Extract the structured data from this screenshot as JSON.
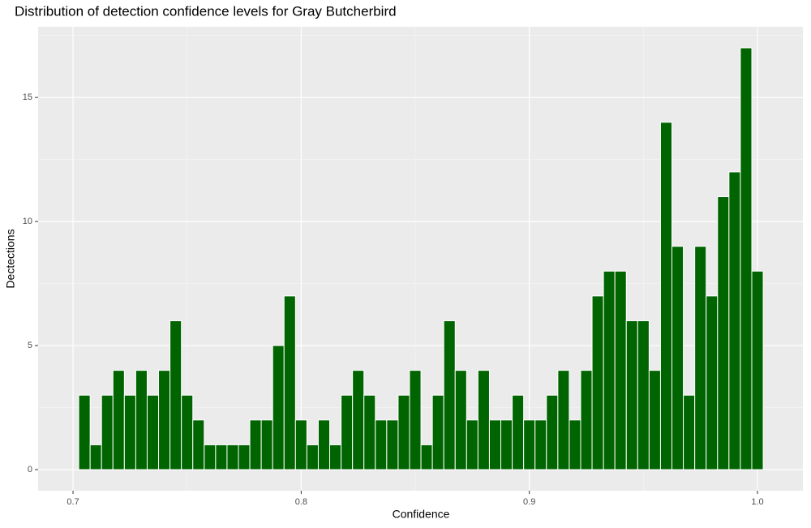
{
  "chart_data": {
    "type": "histogram",
    "title": "Distribution of detection confidence levels for Gray Butcherbird",
    "x_label": "Confidence",
    "y_label": "Dectections",
    "bins": [
      0.7025,
      0.7075,
      0.7125,
      0.7175,
      0.7225,
      0.7275,
      0.7325,
      0.7375,
      0.7425,
      0.7475,
      0.7525,
      0.7575,
      0.7625,
      0.7675,
      0.7725,
      0.7775,
      0.7825,
      0.7875,
      0.7925,
      0.7975,
      0.8025,
      0.8075,
      0.8125,
      0.8175,
      0.8225,
      0.8275,
      0.8325,
      0.8375,
      0.8425,
      0.8475,
      0.8525,
      0.8575,
      0.8625,
      0.8675,
      0.8725,
      0.8775,
      0.8825,
      0.8875,
      0.8925,
      0.8975,
      0.9025,
      0.9075,
      0.9125,
      0.9175,
      0.9225,
      0.9275,
      0.9325,
      0.9375,
      0.9425,
      0.9475,
      0.9525,
      0.9575,
      0.9625,
      0.9675,
      0.9725,
      0.9775,
      0.9825,
      0.9875,
      0.9925,
      0.9975,
      1.0025
    ],
    "values": [
      3,
      1,
      3,
      4,
      3,
      4,
      3,
      4,
      6,
      3,
      2,
      1,
      1,
      1,
      1,
      2,
      2,
      5,
      7,
      2,
      1,
      2,
      1,
      3,
      4,
      3,
      2,
      2,
      3,
      4,
      1,
      3,
      6,
      4,
      2,
      4,
      2,
      2,
      3,
      2,
      2,
      3,
      4,
      2,
      4,
      7,
      8,
      8,
      6,
      6,
      4,
      14,
      9,
      3,
      9,
      7,
      11,
      12,
      17,
      8
    ],
    "color": "#006400",
    "xlim": [
      0.6847,
      1.0199
    ],
    "xticks": [
      0.7,
      0.8,
      0.9,
      {
        "value": 1,
        "label": "1.0"
      }
    ],
    "ylim": [
      -0.85,
      17.85
    ],
    "yticks": [
      0,
      5,
      10,
      15
    ],
    "grid": true
  }
}
